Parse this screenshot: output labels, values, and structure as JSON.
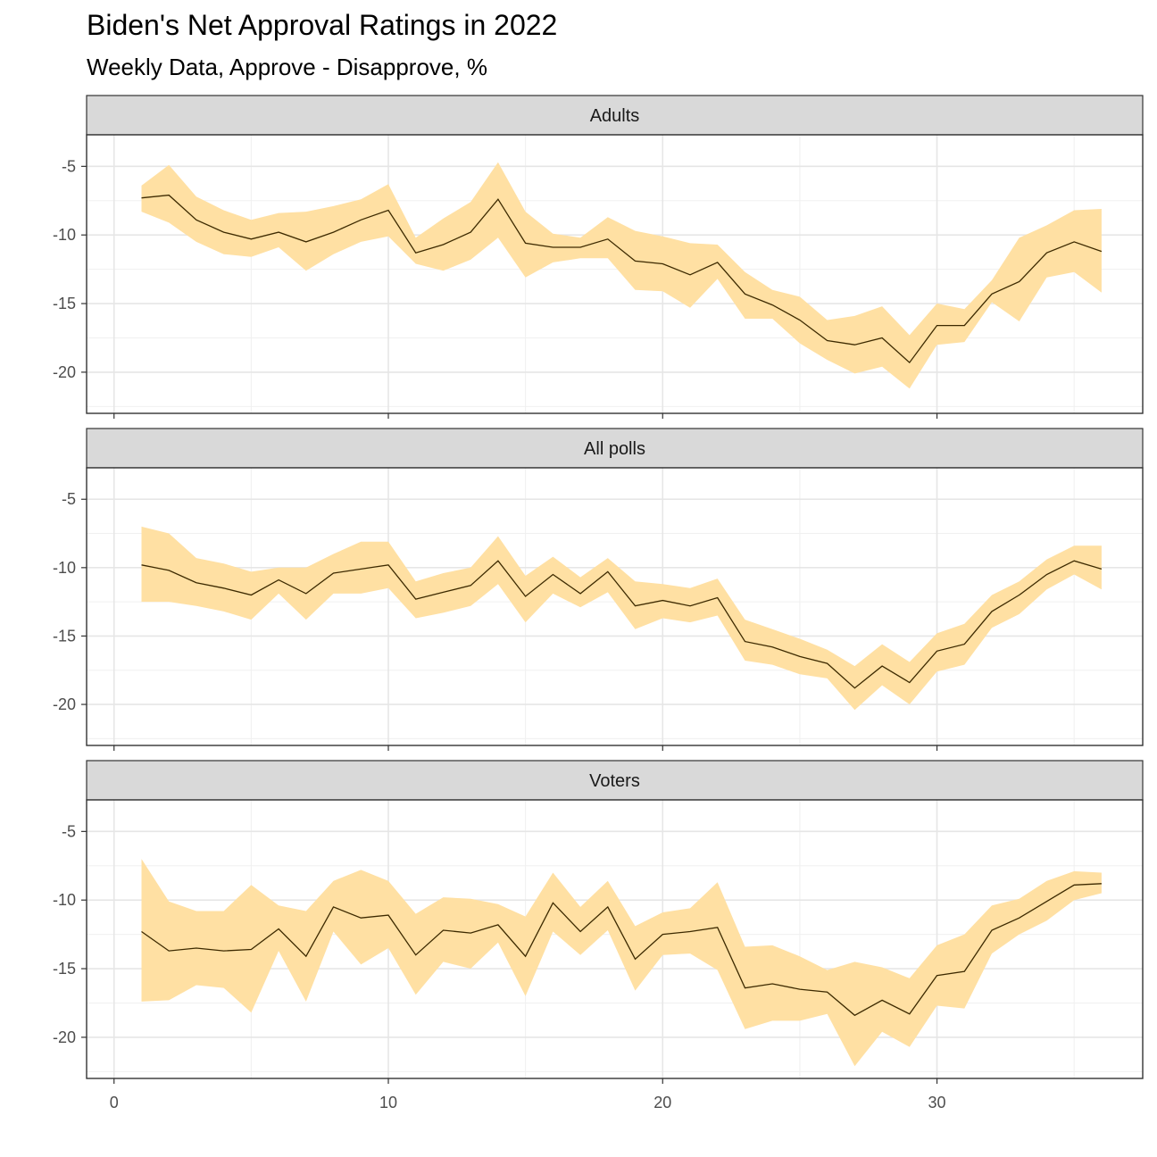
{
  "chart_data": {
    "type": "area",
    "title": "Biden's Net Approval Ratings in 2022",
    "subtitle": "Weekly Data, Approve - Disapprove, %",
    "xlabel": "",
    "ylabel": "",
    "x_ticks": [
      0,
      10,
      20,
      30
    ],
    "y_ticks": [
      -5,
      -10,
      -15,
      -20
    ],
    "xlim": [
      -1,
      37.5
    ],
    "ylim": [
      -23,
      -2.7
    ],
    "grid": true,
    "band_color": "#FFE0A3",
    "line_color": "#3d2a00",
    "panels": [
      {
        "name": "Adults",
        "x": [
          1,
          2,
          3,
          4,
          5,
          6,
          7,
          8,
          9,
          10,
          11,
          12,
          13,
          14,
          15,
          16,
          17,
          18,
          19,
          20,
          21,
          22,
          23,
          24,
          25,
          26,
          27,
          28,
          29,
          30,
          31,
          32,
          33,
          34,
          35,
          36
        ],
        "value": [
          -7.3,
          -7.1,
          -8.9,
          -9.8,
          -10.3,
          -9.8,
          -10.5,
          -9.8,
          -8.9,
          -8.2,
          -11.3,
          -10.7,
          -9.8,
          -7.4,
          -10.6,
          -10.9,
          -10.9,
          -10.3,
          -11.9,
          -12.1,
          -12.9,
          -12.0,
          -14.3,
          -15.1,
          -16.2,
          -17.7,
          -18.0,
          -17.5,
          -19.3,
          -16.6,
          -16.6,
          -14.3,
          -13.4,
          -11.3,
          -10.5,
          -11.2
        ],
        "lower": [
          -8.3,
          -9.1,
          -10.5,
          -11.4,
          -11.6,
          -10.9,
          -12.6,
          -11.4,
          -10.5,
          -10.1,
          -12.1,
          -12.6,
          -11.8,
          -10.2,
          -13.1,
          -12.0,
          -11.7,
          -11.7,
          -14.0,
          -14.1,
          -15.3,
          -13.2,
          -16.1,
          -16.1,
          -17.9,
          -19.1,
          -20.1,
          -19.6,
          -21.2,
          -18.0,
          -17.8,
          -14.9,
          -16.3,
          -13.1,
          -12.7,
          -14.2
        ],
        "upper": [
          -6.4,
          -4.9,
          -7.2,
          -8.2,
          -8.9,
          -8.4,
          -8.3,
          -7.9,
          -7.4,
          -6.3,
          -10.2,
          -8.8,
          -7.6,
          -4.7,
          -8.3,
          -9.9,
          -10.2,
          -8.7,
          -9.7,
          -10.1,
          -10.6,
          -10.7,
          -12.7,
          -14.0,
          -14.5,
          -16.2,
          -15.9,
          -15.2,
          -17.3,
          -15.0,
          -15.4,
          -13.3,
          -10.2,
          -9.3,
          -8.2,
          -8.1
        ]
      },
      {
        "name": "All polls",
        "x": [
          1,
          2,
          3,
          4,
          5,
          6,
          7,
          8,
          9,
          10,
          11,
          12,
          13,
          14,
          15,
          16,
          17,
          18,
          19,
          20,
          21,
          22,
          23,
          24,
          25,
          26,
          27,
          28,
          29,
          30,
          31,
          32,
          33,
          34,
          35,
          36
        ],
        "value": [
          -9.8,
          -10.2,
          -11.1,
          -11.5,
          -12.0,
          -10.9,
          -11.9,
          -10.4,
          -10.1,
          -9.8,
          -12.3,
          -11.8,
          -11.3,
          -9.5,
          -12.1,
          -10.5,
          -11.9,
          -10.3,
          -12.8,
          -12.4,
          -12.8,
          -12.2,
          -15.4,
          -15.8,
          -16.5,
          -17.0,
          -18.8,
          -17.2,
          -18.4,
          -16.1,
          -15.6,
          -13.2,
          -12.0,
          -10.5,
          -9.5,
          -10.1
        ],
        "lower": [
          -12.5,
          -12.5,
          -12.8,
          -13.2,
          -13.8,
          -11.9,
          -13.8,
          -11.9,
          -11.9,
          -11.5,
          -13.7,
          -13.3,
          -12.8,
          -11.2,
          -14.0,
          -11.9,
          -12.9,
          -11.8,
          -14.5,
          -13.7,
          -14.0,
          -13.5,
          -16.8,
          -17.1,
          -17.8,
          -18.1,
          -20.4,
          -18.6,
          -20.0,
          -17.6,
          -17.1,
          -14.4,
          -13.4,
          -11.6,
          -10.5,
          -11.6
        ],
        "upper": [
          -7.0,
          -7.5,
          -9.3,
          -9.7,
          -10.3,
          -10.0,
          -10.0,
          -9.0,
          -8.1,
          -8.1,
          -11.0,
          -10.4,
          -10.0,
          -7.7,
          -10.6,
          -9.2,
          -10.7,
          -9.3,
          -11.0,
          -11.2,
          -11.5,
          -10.8,
          -13.8,
          -14.5,
          -15.2,
          -16.0,
          -17.2,
          -15.6,
          -16.9,
          -14.8,
          -14.1,
          -12.0,
          -11.0,
          -9.4,
          -8.4,
          -8.4
        ]
      },
      {
        "name": "Voters",
        "x": [
          1,
          2,
          3,
          4,
          5,
          6,
          7,
          8,
          9,
          10,
          11,
          12,
          13,
          14,
          15,
          16,
          17,
          18,
          19,
          20,
          21,
          22,
          23,
          24,
          25,
          26,
          27,
          28,
          29,
          30,
          31,
          32,
          33,
          34,
          35,
          36
        ],
        "value": [
          -12.3,
          -13.7,
          -13.5,
          -13.7,
          -13.6,
          -12.1,
          -14.1,
          -10.5,
          -11.3,
          -11.1,
          -14.0,
          -12.2,
          -12.4,
          -11.8,
          -14.1,
          -10.2,
          -12.3,
          -10.5,
          -14.3,
          -12.5,
          -12.3,
          -12.0,
          -16.4,
          -16.1,
          -16.5,
          -16.7,
          -18.4,
          -17.3,
          -18.3,
          -15.5,
          -15.2,
          -12.2,
          -11.3,
          -10.1,
          -8.9,
          -8.8
        ],
        "lower": [
          -17.4,
          -17.3,
          -16.2,
          -16.4,
          -18.2,
          -13.7,
          -17.4,
          -12.3,
          -14.7,
          -13.5,
          -16.9,
          -14.5,
          -15.0,
          -13.1,
          -17.0,
          -12.3,
          -14.0,
          -12.2,
          -16.6,
          -14.0,
          -13.9,
          -15.1,
          -19.4,
          -18.8,
          -18.8,
          -18.3,
          -22.1,
          -19.6,
          -20.7,
          -17.7,
          -17.9,
          -13.9,
          -12.5,
          -11.5,
          -10.0,
          -9.5
        ],
        "upper": [
          -7.0,
          -10.1,
          -10.8,
          -10.8,
          -8.9,
          -10.4,
          -10.8,
          -8.6,
          -7.8,
          -8.6,
          -11.0,
          -9.8,
          -9.9,
          -10.3,
          -11.2,
          -8.0,
          -10.5,
          -8.6,
          -11.9,
          -10.9,
          -10.6,
          -8.7,
          -13.4,
          -13.3,
          -14.1,
          -15.1,
          -14.5,
          -14.9,
          -15.7,
          -13.3,
          -12.5,
          -10.4,
          -9.9,
          -8.6,
          -7.9,
          -8.0
        ]
      }
    ]
  }
}
